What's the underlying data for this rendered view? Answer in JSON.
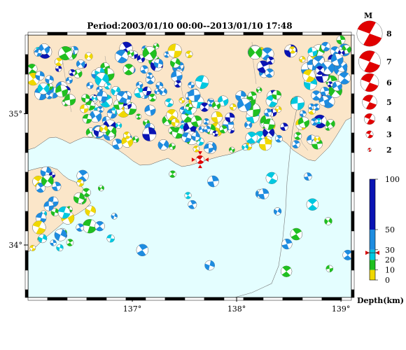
{
  "title": "Period:2003/01/10 00:00--2013/01/10 17:48",
  "map": {
    "lon_range": [
      136.0,
      139.1
    ],
    "lat_range": [
      33.6,
      35.6
    ],
    "lon_ticks": [
      {
        "value": 137,
        "label": "137°"
      },
      {
        "value": 138,
        "label": "138°"
      },
      {
        "value": 139,
        "label": "139°"
      }
    ],
    "lat_ticks": [
      {
        "value": 35,
        "label": "35°"
      },
      {
        "value": 34,
        "label": "34°"
      }
    ],
    "colors": {
      "land": "#fbe6c9",
      "sea": "#e4feff",
      "depth_0_10": "#f0d800",
      "depth_10_20": "#20c020",
      "depth_20_30": "#00c8e0",
      "depth_30_50": "#1e8ce0",
      "depth_50_100": "#0a14b4",
      "highlight": "#e00000"
    },
    "highlight_event": {
      "lon": 137.65,
      "lat": 34.65,
      "depth_km": 30,
      "magnitude": 3
    }
  },
  "magnitude_legend": {
    "title": "M",
    "items": [
      {
        "label": "8",
        "magnitude": 8
      },
      {
        "label": "7",
        "magnitude": 7
      },
      {
        "label": "6",
        "magnitude": 6
      },
      {
        "label": "5",
        "magnitude": 5
      },
      {
        "label": "4",
        "magnitude": 4
      },
      {
        "label": "3",
        "magnitude": 3
      },
      {
        "label": "2",
        "magnitude": 2
      }
    ]
  },
  "depth_legend": {
    "title": "Depth(km)",
    "range": [
      0,
      100
    ],
    "ticks": [
      {
        "value": 100,
        "label": "100"
      },
      {
        "value": 50,
        "label": "50"
      },
      {
        "value": 30,
        "label": "30"
      },
      {
        "value": 20,
        "label": "20"
      },
      {
        "value": 10,
        "label": "10"
      },
      {
        "value": 0,
        "label": "0"
      }
    ],
    "marker_depth": 27
  }
}
